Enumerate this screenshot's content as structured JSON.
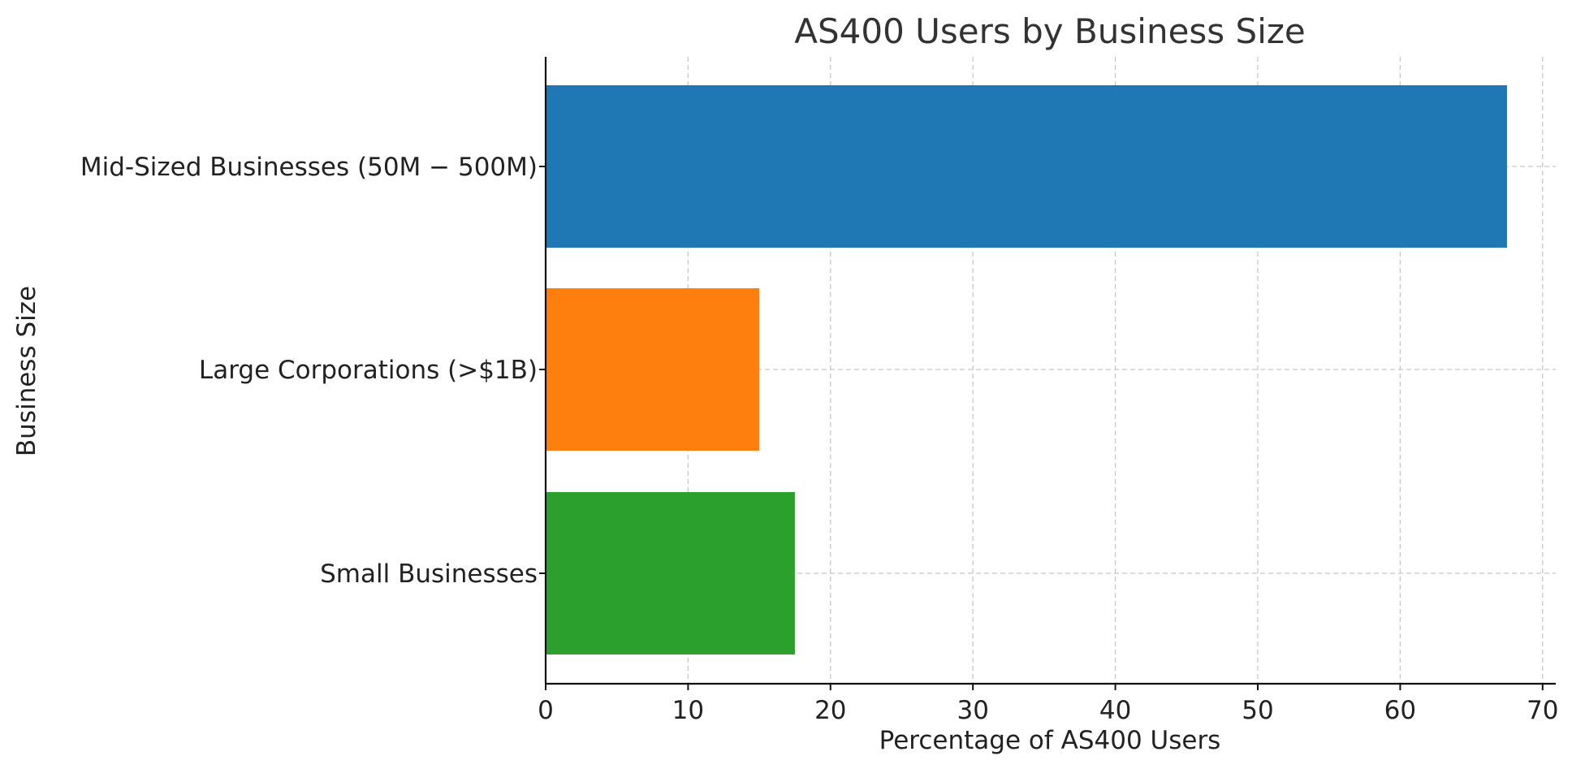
{
  "chart_data": {
    "type": "bar",
    "orientation": "horizontal",
    "title": "AS400 Users by Business Size",
    "xlabel": "Percentage of AS400 Users",
    "ylabel": "Business Size",
    "categories": [
      "Mid-Sized Businesses ($50M-$500M)",
      "Large Corporations (>$1B)",
      "Small Businesses"
    ],
    "category_tick_labels": [
      "Mid-Sized Businesses (50M − 500M)",
      "Large Corporations (>$1B)",
      "Small Businesses"
    ],
    "values": [
      67.5,
      15,
      17.5
    ],
    "colors": [
      "#1f77b4",
      "#ff7f0e",
      "#2ca02c"
    ],
    "xlim": [
      0,
      71
    ],
    "xticks": [
      0,
      10,
      20,
      30,
      40,
      50,
      60,
      70
    ],
    "grid": true,
    "legend": "none"
  }
}
